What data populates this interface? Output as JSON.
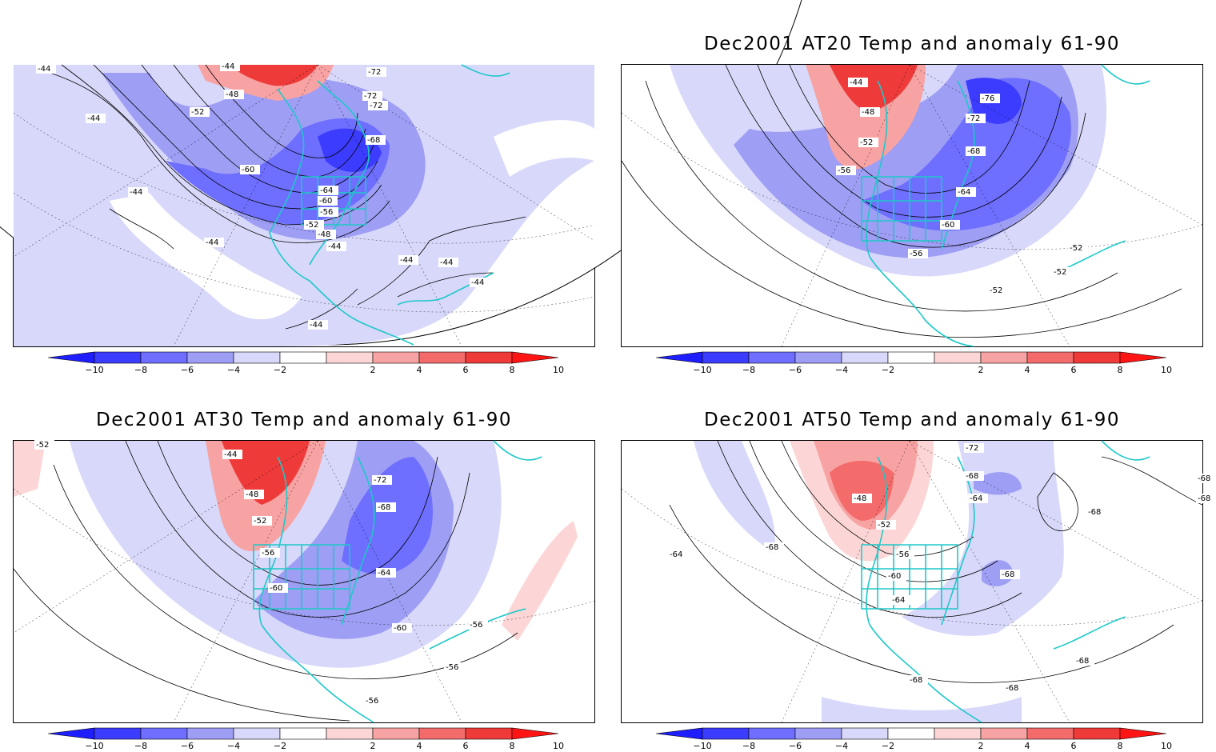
{
  "panels": [
    {
      "title": "Dec2001 AT10 Temp and anomaly 61-90",
      "contour_labels": [
        "-44",
        "-44",
        "-44",
        "-48",
        "-52",
        "-60",
        "-44",
        "-44",
        "-64",
        "-60",
        "-56",
        "-52",
        "-48",
        "-44",
        "-44",
        "-44",
        "-44",
        "-44",
        "-72",
        "-72",
        "-72",
        "-68"
      ]
    },
    {
      "title": "Dec2001 AT20 Temp and anomaly 61-90",
      "contour_labels": [
        "-44",
        "-48",
        "-52",
        "-56",
        "-76",
        "-72",
        "-68",
        "-64",
        "-60",
        "-56",
        "-52",
        "-52",
        "-52"
      ]
    },
    {
      "title": "Dec2001 AT30 Temp and anomaly 61-90",
      "contour_labels": [
        "-52",
        "-44",
        "-48",
        "-52",
        "-56",
        "-60",
        "-72",
        "-68",
        "-64",
        "-60",
        "-56",
        "-56",
        "-56"
      ]
    },
    {
      "title": "Dec2001 AT50 Temp and anomaly 61-90",
      "contour_labels": [
        "-72",
        "-68",
        "-64",
        "-48",
        "-52",
        "-56",
        "-60",
        "-64",
        "-68",
        "-68",
        "-64",
        "-68",
        "-68",
        "-68",
        "-68",
        "-68",
        "-68"
      ]
    }
  ],
  "colorbar": {
    "ticks": [
      "−10",
      "−8",
      "−6",
      "−4",
      "−2",
      "2",
      "4",
      "6",
      "8",
      "10"
    ],
    "colors": [
      "#1e1eff",
      "#3c3cff",
      "#6e6eff",
      "#9e9ef5",
      "#d8d8fa",
      "#ffffff",
      "#fcd6d6",
      "#f8a3a3",
      "#f36b6b",
      "#ef3a3a",
      "#ff1414"
    ]
  }
}
